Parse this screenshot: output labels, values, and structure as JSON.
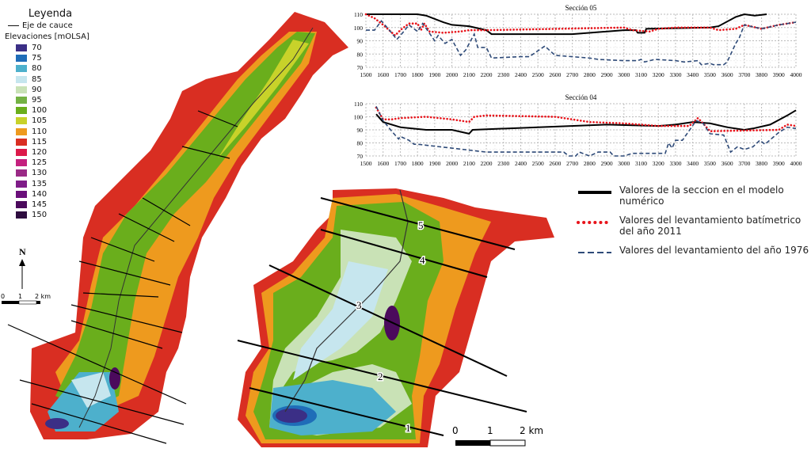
{
  "legend": {
    "title": "Leyenda",
    "axis_label": "Eje de cauce",
    "elev_title": "Elevaciones [mOLSA]",
    "classes": [
      {
        "v": "70",
        "c": "#3b2f86"
      },
      {
        "v": "75",
        "c": "#1f6db8"
      },
      {
        "v": "80",
        "c": "#4db0cc"
      },
      {
        "v": "85",
        "c": "#c6e6ee"
      },
      {
        "v": "90",
        "c": "#c9e2b6"
      },
      {
        "v": "95",
        "c": "#74b244"
      },
      {
        "v": "100",
        "c": "#6aae1c"
      },
      {
        "v": "105",
        "c": "#c8d22a"
      },
      {
        "v": "110",
        "c": "#ee9a1e"
      },
      {
        "v": "115",
        "c": "#d92e22"
      },
      {
        "v": "120",
        "c": "#dc1a4a"
      },
      {
        "v": "125",
        "c": "#c4207e"
      },
      {
        "v": "130",
        "c": "#9a2a86"
      },
      {
        "v": "135",
        "c": "#7f1c88"
      },
      {
        "v": "140",
        "c": "#6a0f7a"
      },
      {
        "v": "145",
        "c": "#4b0a5c"
      },
      {
        "v": "150",
        "c": "#2e0c3f"
      }
    ]
  },
  "north": "N",
  "scale_left": {
    "labels": [
      "0",
      "1",
      "2 km"
    ]
  },
  "scale_right": {
    "labels": [
      "0",
      "1",
      "2 km"
    ]
  },
  "sections": [
    "1",
    "2",
    "3",
    "4",
    "5"
  ],
  "line_legend": [
    {
      "label": "Valores de la seccion en el modelo numérico",
      "color": "#000000",
      "style": "solid"
    },
    {
      "label": "Valores del levantamiento batímetrico del año 2011",
      "color": "#e8141b",
      "style": "dotted"
    },
    {
      "label": "Valores del levantamiento del año 1976",
      "color": "#2e4a78",
      "style": "dashed"
    }
  ],
  "chart_data": [
    {
      "type": "line",
      "title": "Sección 05",
      "xlim": [
        1500,
        4000
      ],
      "ylim": [
        70,
        110
      ],
      "grid": true,
      "xticks": [
        1500,
        1600,
        1700,
        1800,
        1900,
        2000,
        2100,
        2200,
        2300,
        2400,
        2500,
        2600,
        2700,
        2800,
        2900,
        3000,
        3100,
        3200,
        3300,
        3400,
        3500,
        3600,
        3700,
        3800,
        3900,
        4000
      ],
      "yticks": [
        70,
        80,
        90,
        100,
        110
      ],
      "series": [
        {
          "name": "Valores de la seccion en el modelo numérico",
          "points": [
            [
              1500,
              110
            ],
            [
              1800,
              110
            ],
            [
              1850,
              109
            ],
            [
              1950,
              104
            ],
            [
              2000,
              102
            ],
            [
              2100,
              101
            ],
            [
              2200,
              98
            ],
            [
              2230,
              95
            ],
            [
              2700,
              95
            ],
            [
              3000,
              98
            ],
            [
              3070,
              98
            ],
            [
              3080,
              96
            ],
            [
              3120,
              96
            ],
            [
              3130,
              99
            ],
            [
              3500,
              100
            ],
            [
              3550,
              101
            ],
            [
              3650,
              108
            ],
            [
              3700,
              110
            ],
            [
              3760,
              109
            ],
            [
              3830,
              110
            ]
          ]
        },
        {
          "name": "Valores del levantamiento batímetrico del año 2011",
          "points": [
            [
              1500,
              110
            ],
            [
              1550,
              107
            ],
            [
              1600,
              102
            ],
            [
              1670,
              94
            ],
            [
              1700,
              98
            ],
            [
              1750,
              103
            ],
            [
              1800,
              103
            ],
            [
              1820,
              98
            ],
            [
              1840,
              103
            ],
            [
              1870,
              97
            ],
            [
              1950,
              96
            ],
            [
              2050,
              97
            ],
            [
              2100,
              98
            ],
            [
              2200,
              98
            ],
            [
              3000,
              100
            ],
            [
              3050,
              98
            ],
            [
              3150,
              97
            ],
            [
              3200,
              99
            ],
            [
              3300,
              100
            ],
            [
              3500,
              100
            ],
            [
              3550,
              98
            ],
            [
              3650,
              99
            ],
            [
              3700,
              102
            ],
            [
              3800,
              99
            ],
            [
              3900,
              102
            ],
            [
              4000,
              104
            ]
          ]
        },
        {
          "name": "Valores del levantamiento del año 1976",
          "points": [
            [
              1500,
              98
            ],
            [
              1550,
              98
            ],
            [
              1590,
              105
            ],
            [
              1630,
              99
            ],
            [
              1680,
              91
            ],
            [
              1720,
              97
            ],
            [
              1750,
              102
            ],
            [
              1800,
              97
            ],
            [
              1830,
              103
            ],
            [
              1900,
              90
            ],
            [
              1920,
              94
            ],
            [
              1960,
              88
            ],
            [
              2000,
              91
            ],
            [
              2050,
              79
            ],
            [
              2080,
              83
            ],
            [
              2130,
              95
            ],
            [
              2150,
              85
            ],
            [
              2200,
              85
            ],
            [
              2230,
              77
            ],
            [
              2400,
              78
            ],
            [
              2450,
              78
            ],
            [
              2540,
              86
            ],
            [
              2600,
              79
            ],
            [
              2800,
              77
            ],
            [
              2850,
              76
            ],
            [
              3000,
              75
            ],
            [
              3080,
              75
            ],
            [
              3100,
              76
            ],
            [
              3120,
              74
            ],
            [
              3180,
              76
            ],
            [
              3300,
              75
            ],
            [
              3350,
              74
            ],
            [
              3430,
              75
            ],
            [
              3450,
              72
            ],
            [
              3500,
              73
            ],
            [
              3520,
              72
            ],
            [
              3580,
              72
            ],
            [
              3600,
              74
            ],
            [
              3650,
              88
            ],
            [
              3670,
              92
            ],
            [
              3700,
              102
            ],
            [
              3800,
              99
            ],
            [
              3900,
              102
            ],
            [
              4000,
              104
            ]
          ]
        }
      ]
    },
    {
      "type": "line",
      "title": "Sección 04",
      "xlim": [
        1500,
        4000
      ],
      "ylim": [
        70,
        110
      ],
      "grid": true,
      "xticks": [
        1500,
        1600,
        1700,
        1800,
        1900,
        2000,
        2100,
        2200,
        2300,
        2400,
        2500,
        2600,
        2700,
        2800,
        2900,
        3000,
        3100,
        3200,
        3300,
        3400,
        3500,
        3600,
        3700,
        3800,
        3900,
        4000
      ],
      "yticks": [
        70,
        80,
        90,
        100,
        110
      ],
      "series": [
        {
          "name": "Valores de la seccion en el modelo numérico",
          "points": [
            [
              1560,
              102
            ],
            [
              1600,
              96
            ],
            [
              1700,
              92
            ],
            [
              1850,
              90
            ],
            [
              2000,
              90
            ],
            [
              2100,
              87
            ],
            [
              2120,
              90
            ],
            [
              2500,
              92
            ],
            [
              2900,
              94
            ],
            [
              3200,
              93
            ],
            [
              3300,
              94
            ],
            [
              3400,
              96
            ],
            [
              3500,
              95
            ],
            [
              3600,
              92
            ],
            [
              3700,
              90
            ],
            [
              3750,
              91
            ],
            [
              3850,
              94
            ],
            [
              3950,
              101
            ],
            [
              4000,
              105
            ]
          ]
        },
        {
          "name": "Valores del levantamiento batímetrico del año 2011",
          "points": [
            [
              1560,
              107
            ],
            [
              1600,
              98
            ],
            [
              1650,
              98
            ],
            [
              1700,
              99
            ],
            [
              1850,
              100
            ],
            [
              2000,
              98
            ],
            [
              2100,
              96
            ],
            [
              2130,
              100
            ],
            [
              2200,
              101
            ],
            [
              2600,
              100
            ],
            [
              2700,
              98
            ],
            [
              2800,
              96
            ],
            [
              3000,
              95
            ],
            [
              3200,
              93
            ],
            [
              3380,
              93
            ],
            [
              3430,
              99
            ],
            [
              3460,
              95
            ],
            [
              3500,
              89
            ],
            [
              3900,
              90
            ],
            [
              3950,
              94
            ],
            [
              4000,
              93
            ]
          ]
        },
        {
          "name": "Valores del levantamiento del año 1976",
          "points": [
            [
              1560,
              108
            ],
            [
              1600,
              97
            ],
            [
              1650,
              89
            ],
            [
              1690,
              83
            ],
            [
              1700,
              85
            ],
            [
              1750,
              82
            ],
            [
              1780,
              79
            ],
            [
              1800,
              79
            ],
            [
              2000,
              76
            ],
            [
              2200,
              73
            ],
            [
              2650,
              73
            ],
            [
              2680,
              70
            ],
            [
              2720,
              70
            ],
            [
              2740,
              73
            ],
            [
              2800,
              70
            ],
            [
              2850,
              73
            ],
            [
              2920,
              73
            ],
            [
              2940,
              70
            ],
            [
              3000,
              70
            ],
            [
              3050,
              72
            ],
            [
              3240,
              72
            ],
            [
              3260,
              80
            ],
            [
              3280,
              76
            ],
            [
              3300,
              82
            ],
            [
              3340,
              82
            ],
            [
              3420,
              97
            ],
            [
              3460,
              95
            ],
            [
              3500,
              87
            ],
            [
              3580,
              86
            ],
            [
              3620,
              73
            ],
            [
              3660,
              77
            ],
            [
              3700,
              75
            ],
            [
              3750,
              77
            ],
            [
              3790,
              82
            ],
            [
              3820,
              79
            ],
            [
              3900,
              88
            ],
            [
              3950,
              92
            ],
            [
              4000,
              91
            ]
          ]
        }
      ]
    }
  ]
}
